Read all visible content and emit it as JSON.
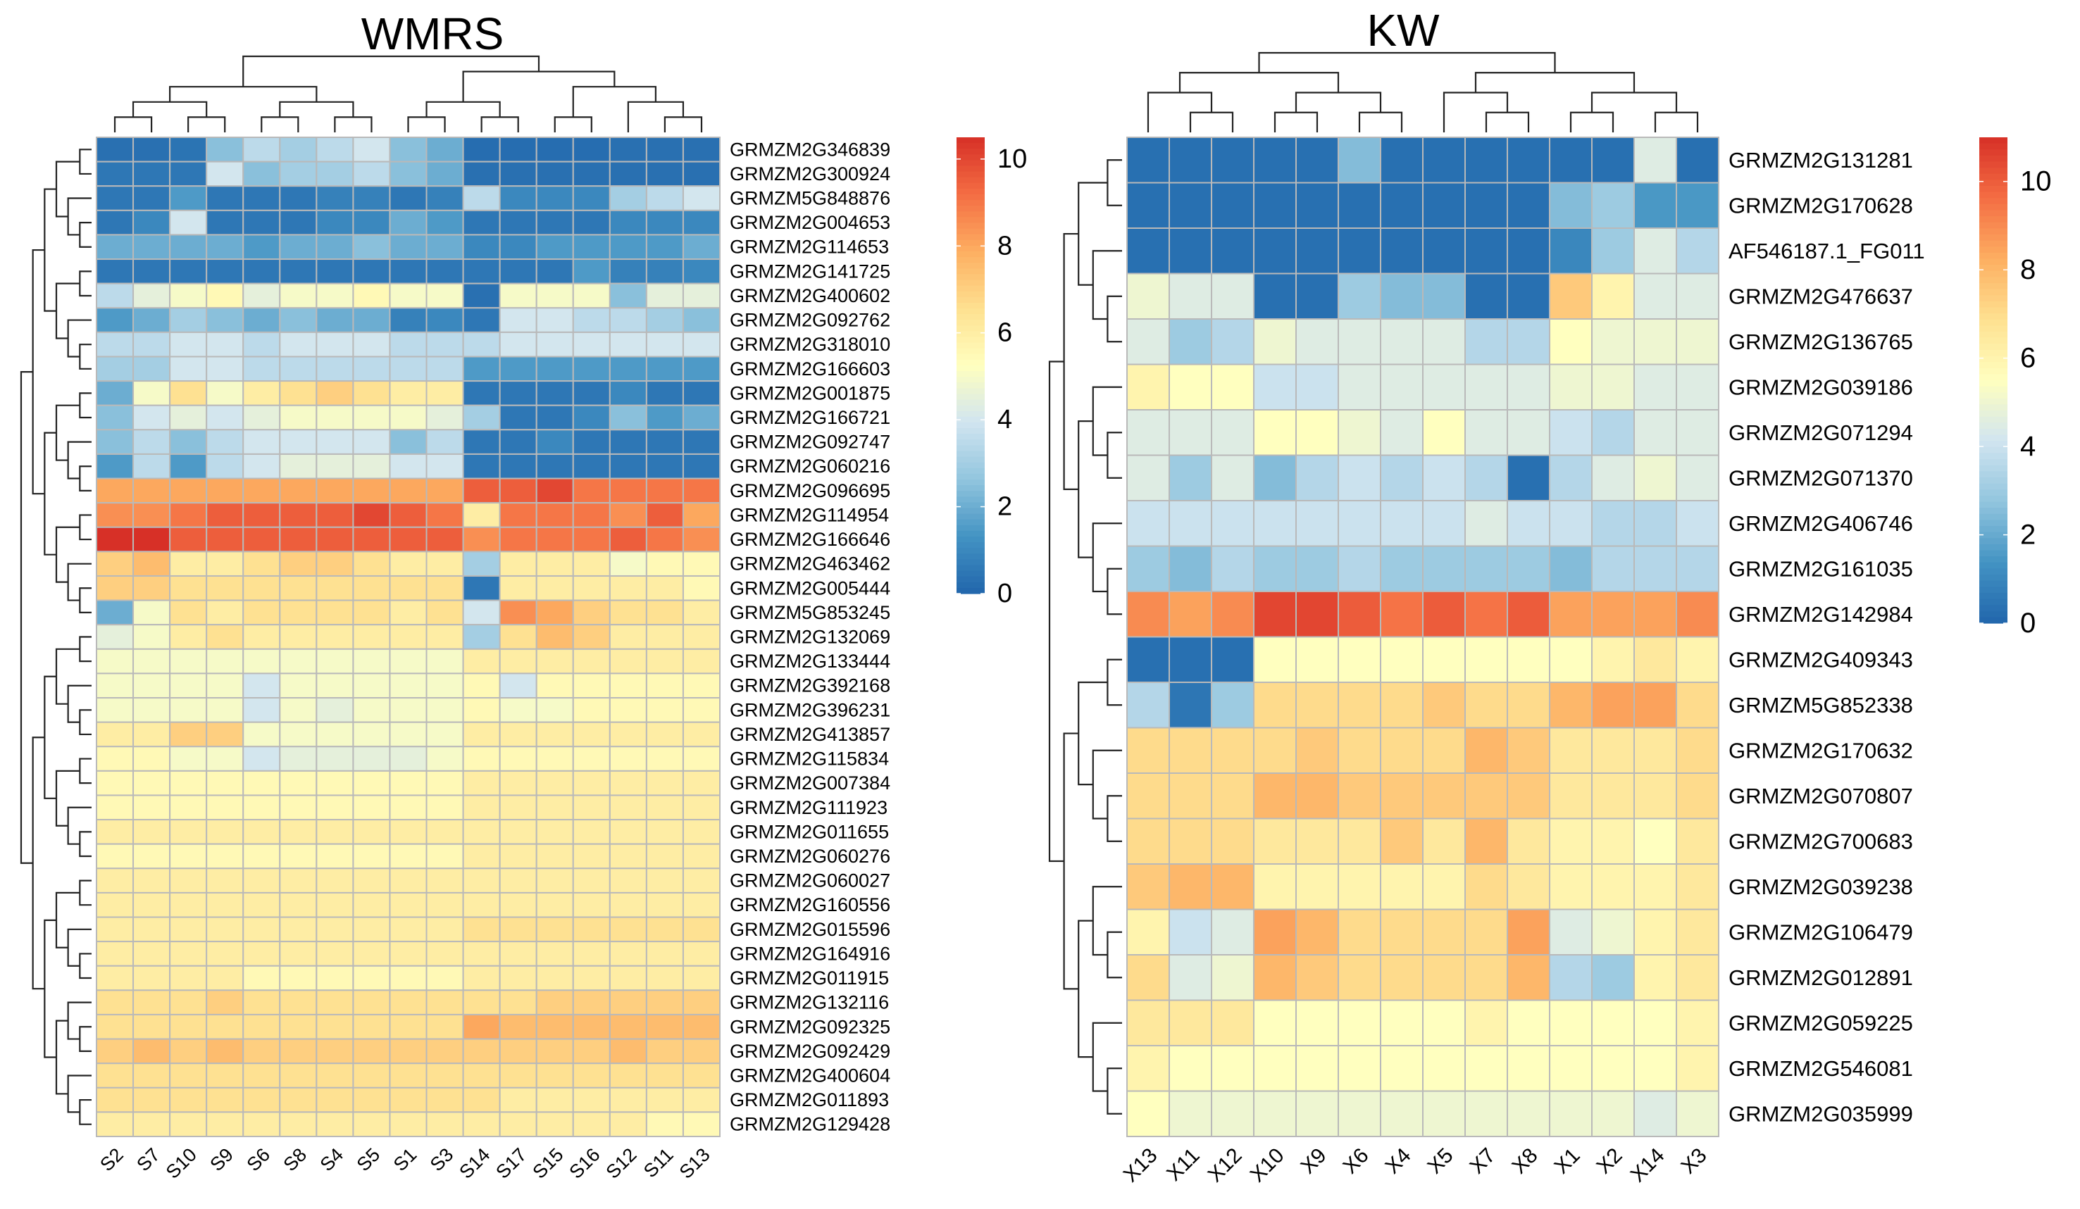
{
  "chart_data": [
    {
      "type": "heatmap",
      "title": "WMRS",
      "columns": [
        "S2",
        "S7",
        "S10",
        "S9",
        "S6",
        "S8",
        "S4",
        "S5",
        "S1",
        "S3",
        "S14",
        "S17",
        "S15",
        "S16",
        "S12",
        "S11",
        "S13"
      ],
      "rows": [
        "GRMZM2G346839",
        "GRMZM2G300924",
        "GRMZM5G848876",
        "GRMZM2G004653",
        "GRMZM2G114653",
        "GRMZM2G141725",
        "GRMZM2G400602",
        "GRMZM2G092762",
        "GRMZM2G318010",
        "GRMZM2G166603",
        "GRMZM2G001875",
        "GRMZM2G166721",
        "GRMZM2G092747",
        "GRMZM2G060216",
        "GRMZM2G096695",
        "GRMZM2G114954",
        "GRMZM2G166646",
        "GRMZM2G463462",
        "GRMZM2G005444",
        "GRMZM5G853245",
        "GRMZM2G132069",
        "GRMZM2G133444",
        "GRMZM2G392168",
        "GRMZM2G396231",
        "GRMZM2G413857",
        "GRMZM2G115834",
        "GRMZM2G007384",
        "GRMZM2G111923",
        "GRMZM2G011655",
        "GRMZM2G060276",
        "GRMZM2G060027",
        "GRMZM2G160556",
        "GRMZM2G015596",
        "GRMZM2G164916",
        "GRMZM2G011915",
        "GRMZM2G132116",
        "GRMZM2G092325",
        "GRMZM2G092429",
        "GRMZM2G400604",
        "GRMZM2G011893",
        "GRMZM2G129428"
      ],
      "values": [
        [
          0.3,
          0.3,
          0.4,
          2.5,
          3.5,
          3,
          3.5,
          4,
          2.5,
          2,
          0.2,
          0.2,
          0.2,
          0.2,
          0.3,
          0.3,
          0.3
        ],
        [
          0.5,
          0.5,
          0.5,
          4,
          2.5,
          3,
          3,
          3.5,
          2.5,
          2,
          0.3,
          0.3,
          0.3,
          0.3,
          0.3,
          0.3,
          0.3
        ],
        [
          0.5,
          0.5,
          1.5,
          0.5,
          0.5,
          0.5,
          0.8,
          0.8,
          0.5,
          0.8,
          3.5,
          1,
          1,
          1,
          3,
          3.5,
          4
        ],
        [
          0.5,
          1,
          4,
          0.5,
          0.5,
          0.5,
          1,
          1,
          2,
          1.5,
          0.5,
          0.5,
          0.5,
          0.5,
          1,
          1,
          1
        ],
        [
          2,
          2,
          2,
          2,
          1.5,
          2,
          2,
          2.5,
          2,
          2,
          1,
          1,
          1.5,
          1.5,
          1.5,
          1.5,
          2
        ],
        [
          0.5,
          0.5,
          0.5,
          0.5,
          0.5,
          0.5,
          0.5,
          0.5,
          0.5,
          0.5,
          0.5,
          0.5,
          0.5,
          1.5,
          0.8,
          0.8,
          1
        ],
        [
          3.5,
          4.5,
          5,
          5.5,
          4.5,
          5,
          5,
          5.5,
          5,
          5,
          0.3,
          5,
          5,
          5,
          2.5,
          4.5,
          4.5
        ],
        [
          1.5,
          2,
          3,
          2.5,
          2,
          2.5,
          2,
          2,
          0.8,
          1,
          0.5,
          4,
          4,
          3.5,
          3.5,
          3,
          2.5
        ],
        [
          3.5,
          3.5,
          4,
          4,
          3.5,
          4,
          4,
          4,
          3.5,
          3.5,
          3.5,
          4,
          4,
          4,
          4,
          4,
          4
        ],
        [
          3,
          3,
          4,
          4,
          3.5,
          3.5,
          3.5,
          3.5,
          3.5,
          3.5,
          1.5,
          1.5,
          1.5,
          1.5,
          1.5,
          1.5,
          1.5
        ],
        [
          2,
          5,
          6.5,
          5,
          6,
          6.5,
          7,
          6.5,
          6,
          6,
          0.5,
          0.5,
          0.5,
          0.5,
          1,
          0.5,
          0.5
        ],
        [
          2.5,
          4,
          4.5,
          4,
          4.5,
          5,
          5,
          5,
          5,
          4.5,
          3,
          0.5,
          0.5,
          1,
          2.5,
          1.5,
          2
        ],
        [
          2.5,
          3.5,
          2.5,
          3.5,
          4,
          4,
          4,
          4,
          2.5,
          3.5,
          0.5,
          0.5,
          1,
          0.5,
          0.5,
          0.5,
          0.5
        ],
        [
          1.5,
          3.5,
          1.5,
          3.5,
          4,
          4.5,
          4.5,
          4.5,
          4,
          4,
          0.5,
          0.5,
          0.5,
          0.5,
          0.5,
          0.5,
          0.5
        ],
        [
          8,
          8,
          8,
          8,
          8,
          8,
          8,
          8,
          8,
          8,
          9.5,
          9.5,
          10,
          9,
          9,
          9,
          9
        ],
        [
          8.5,
          8.5,
          9,
          9.5,
          9.5,
          9.5,
          9.5,
          10,
          9.5,
          9,
          6,
          9,
          9,
          9,
          8.5,
          9.5,
          8
        ],
        [
          10.5,
          10.5,
          9.5,
          9.5,
          9.5,
          9.5,
          9.5,
          9.5,
          9.5,
          9.5,
          8.5,
          9,
          9,
          9,
          9.5,
          9,
          8.5
        ],
        [
          7,
          7.5,
          6,
          6,
          6.5,
          7,
          7,
          6.5,
          6,
          6,
          3,
          6,
          6,
          6,
          5,
          5.5,
          5.5
        ],
        [
          7,
          7,
          6.5,
          6.5,
          6.5,
          6.5,
          6.5,
          6.5,
          6.5,
          6.5,
          0.5,
          6,
          6,
          6,
          6,
          6,
          5.5
        ],
        [
          2,
          5,
          6.5,
          6,
          6.5,
          6.5,
          6.5,
          6.5,
          6,
          6.5,
          4,
          8.5,
          8,
          7,
          6.5,
          6.5,
          6
        ],
        [
          4.5,
          5,
          6,
          6.5,
          6,
          6,
          6,
          6,
          6,
          6,
          3,
          6.5,
          7.5,
          7,
          6,
          6,
          6
        ],
        [
          5,
          5,
          5,
          5,
          5,
          5,
          5,
          5,
          5,
          5,
          6,
          6,
          6,
          6,
          6,
          6,
          6
        ],
        [
          5,
          5,
          5,
          5,
          4,
          5,
          5,
          5,
          5,
          5,
          5.5,
          4,
          5.5,
          5.5,
          5.5,
          5.5,
          5.5
        ],
        [
          5,
          5,
          5,
          5,
          4,
          5,
          4.5,
          5,
          5,
          5,
          5.5,
          5,
          5,
          5.5,
          5.5,
          5.5,
          5.5
        ],
        [
          6,
          6,
          7,
          7,
          5,
          5,
          5,
          5,
          5,
          5,
          6,
          6,
          6,
          6,
          6,
          6,
          6
        ],
        [
          5.5,
          5.5,
          5,
          5,
          4,
          4.5,
          4.5,
          4.5,
          4.5,
          5,
          5.5,
          5.5,
          5.5,
          5.5,
          5.5,
          5.5,
          5.5
        ],
        [
          5.5,
          5.5,
          5.5,
          5.5,
          5.5,
          5.5,
          5.5,
          5.5,
          5.5,
          5.5,
          6,
          6,
          6,
          6,
          6,
          6,
          6
        ],
        [
          5.5,
          5.5,
          5.5,
          5.5,
          5.5,
          5.5,
          5.5,
          5.5,
          5.5,
          5.5,
          6,
          6,
          6,
          6,
          6,
          6,
          6
        ],
        [
          6,
          6,
          6,
          6,
          6,
          6,
          6,
          6,
          6,
          6,
          6,
          6,
          6,
          6,
          6,
          6,
          6
        ],
        [
          5.5,
          5.5,
          5.5,
          5.5,
          5.5,
          5.5,
          5.5,
          5.5,
          5.5,
          5.5,
          6,
          6,
          6,
          6,
          6,
          6,
          6
        ],
        [
          6,
          6,
          6,
          6,
          6,
          6,
          6,
          6,
          6,
          6,
          6,
          6,
          6,
          6,
          6,
          6,
          6
        ],
        [
          6,
          6,
          6,
          6,
          6,
          6,
          6,
          6,
          6,
          6,
          6,
          6,
          6,
          6,
          6,
          6,
          6
        ],
        [
          6,
          6,
          6,
          6,
          6,
          6,
          6,
          6,
          6,
          6,
          6.5,
          6.5,
          6.5,
          6.5,
          6.5,
          6.5,
          6.5
        ],
        [
          6,
          6,
          6,
          6,
          6,
          6,
          6,
          6,
          6,
          6,
          6,
          6,
          6,
          6,
          6,
          6,
          6
        ],
        [
          6,
          6,
          6,
          6,
          5.5,
          5.5,
          5.5,
          5.5,
          5.5,
          5.5,
          6,
          6,
          6,
          6,
          6,
          6,
          6
        ],
        [
          6.5,
          6.5,
          6.5,
          7,
          6.5,
          6.5,
          6.5,
          6.5,
          6.5,
          6.5,
          6.5,
          6.5,
          7,
          7,
          7,
          7,
          7
        ],
        [
          6.5,
          6.5,
          6.5,
          6.5,
          6.5,
          6.5,
          6.5,
          6.5,
          6.5,
          6.5,
          8,
          7.5,
          7.5,
          7.5,
          7.5,
          7.5,
          7.5
        ],
        [
          7,
          7.5,
          7,
          7.5,
          7,
          7,
          7,
          7,
          7,
          7,
          7,
          7,
          7,
          7,
          7.5,
          7,
          7
        ],
        [
          6.5,
          6.5,
          6.5,
          6.5,
          6.5,
          6.5,
          6.5,
          6.5,
          6.5,
          6.5,
          6.5,
          6.5,
          6.5,
          6.5,
          6.5,
          6.5,
          6.5
        ],
        [
          6.5,
          6.5,
          6.5,
          6.5,
          6.5,
          6.5,
          6.5,
          6.5,
          6.5,
          6.5,
          6.5,
          6,
          6,
          6,
          6,
          6,
          6
        ],
        [
          6,
          6,
          6,
          6,
          6,
          6,
          6,
          6,
          6,
          6,
          6,
          6,
          6,
          6,
          6,
          5.5,
          5.5
        ]
      ],
      "color_scale": {
        "min": 0,
        "max": 10.5,
        "ticks": [
          0,
          2,
          4,
          6,
          8,
          10
        ],
        "colors": [
          "#2166ac",
          "#4393c3",
          "#92c5de",
          "#d1e5f0",
          "#ffffbf",
          "#fee090",
          "#fdae61",
          "#f46d43",
          "#d73027"
        ]
      },
      "legend": "right"
    },
    {
      "type": "heatmap",
      "title": "KW",
      "columns": [
        "X13",
        "X11",
        "X12",
        "X10",
        "X9",
        "X6",
        "X4",
        "X5",
        "X7",
        "X8",
        "X1",
        "X2",
        "X14",
        "X3"
      ],
      "rows": [
        "GRMZM2G131281",
        "GRMZM2G170628",
        "AF546187.1_FG011",
        "GRMZM2G476637",
        "GRMZM2G136765",
        "GRMZM2G039186",
        "GRMZM2G071294",
        "GRMZM2G071370",
        "GRMZM2G406746",
        "GRMZM2G161035",
        "GRMZM2G142984",
        "GRMZM2G409343",
        "GRMZM5G852338",
        "GRMZM2G170632",
        "GRMZM2G070807",
        "GRMZM2G700683",
        "GRMZM2G039238",
        "GRMZM2G106479",
        "GRMZM2G012891",
        "GRMZM2G059225",
        "GRMZM2G546081",
        "GRMZM2G035999"
      ],
      "values": [
        [
          0.3,
          0.3,
          0.3,
          0.3,
          0.3,
          2.5,
          0.3,
          0.3,
          0.3,
          0.3,
          0.3,
          0.3,
          4.5,
          0.3
        ],
        [
          0.3,
          0.3,
          0.3,
          0.3,
          0.3,
          0.3,
          0.3,
          0.3,
          0.3,
          0.3,
          2.5,
          3,
          1.5,
          1.5
        ],
        [
          0.3,
          0.3,
          0.3,
          0.3,
          0.3,
          0.3,
          0.3,
          0.3,
          0.3,
          0.3,
          1,
          3,
          4.5,
          3.5
        ],
        [
          5,
          4.5,
          4.5,
          0.3,
          0.3,
          3,
          2.5,
          2.5,
          0.3,
          0.3,
          7.5,
          6,
          4.5,
          4.5
        ],
        [
          4.5,
          3,
          3.5,
          5,
          4.5,
          4.5,
          4.5,
          4.5,
          3.5,
          3.5,
          5.5,
          5,
          5,
          5
        ],
        [
          6,
          5.5,
          5.5,
          4,
          4,
          4.5,
          4.5,
          4.5,
          4.5,
          4.5,
          5,
          5,
          4.5,
          4.5
        ],
        [
          4.5,
          4.5,
          4.5,
          5.5,
          5.5,
          5,
          4.5,
          5.5,
          4.5,
          4.5,
          4,
          3.5,
          4.5,
          4.5
        ],
        [
          4.5,
          3,
          4.5,
          2.5,
          3.5,
          4,
          3.5,
          4,
          3.5,
          0.3,
          3.5,
          4.5,
          5,
          4.5
        ],
        [
          4,
          4,
          4,
          4,
          4,
          4,
          4,
          4,
          4.5,
          4,
          4,
          3.5,
          3.5,
          4
        ],
        [
          3,
          2.5,
          3.5,
          3,
          3,
          3.5,
          3,
          3,
          3,
          3,
          2.5,
          3.5,
          3.5,
          3.5
        ],
        [
          9,
          8.5,
          9,
          10.5,
          10.5,
          10,
          9.5,
          10,
          9.5,
          10,
          8.5,
          8.5,
          8.5,
          9
        ],
        [
          0.3,
          0.3,
          0.3,
          5.5,
          5.5,
          5.5,
          5.5,
          5.5,
          5.5,
          5.5,
          5.5,
          6,
          6.5,
          6
        ],
        [
          3.5,
          0.5,
          3,
          7,
          7,
          7,
          7,
          7.5,
          7,
          7,
          8,
          8.5,
          8.5,
          7
        ],
        [
          7,
          7,
          7,
          7,
          7.5,
          7,
          7,
          7,
          8,
          7.5,
          6.5,
          6.5,
          6.5,
          7
        ],
        [
          7,
          7,
          7,
          8,
          8,
          7.5,
          7.5,
          7.5,
          7.5,
          7.5,
          6.5,
          6.5,
          6.5,
          7
        ],
        [
          7,
          7,
          7,
          6.5,
          6.5,
          6.5,
          7.5,
          6.5,
          8,
          6.5,
          6,
          6,
          5.5,
          6.5
        ],
        [
          7.5,
          8,
          8,
          6,
          6,
          6,
          6,
          6,
          7,
          6.5,
          6,
          6,
          6,
          6.5
        ],
        [
          6,
          4,
          4.5,
          8.5,
          8,
          7,
          7,
          7,
          7,
          8.5,
          4.5,
          5,
          6,
          6.5
        ],
        [
          7,
          4.5,
          5,
          8,
          7.5,
          7,
          7,
          7,
          7,
          8,
          3.5,
          3,
          6,
          6.5
        ],
        [
          6.5,
          6.5,
          6.5,
          5.5,
          5.5,
          5.5,
          5.5,
          5.5,
          6,
          5.5,
          5.5,
          5.5,
          5.5,
          6
        ],
        [
          6,
          5.5,
          5.5,
          5.5,
          5.5,
          5.5,
          5.5,
          5.5,
          5.5,
          5.5,
          5.5,
          5.5,
          5.5,
          6
        ],
        [
          5.5,
          5,
          5,
          5,
          5,
          5,
          5,
          5,
          5,
          5,
          5,
          5,
          4.5,
          5
        ]
      ],
      "color_scale": {
        "min": 0,
        "max": 11,
        "ticks": [
          0,
          2,
          4,
          6,
          8,
          10
        ],
        "colors": [
          "#2166ac",
          "#4393c3",
          "#92c5de",
          "#d1e5f0",
          "#ffffbf",
          "#fee090",
          "#fdae61",
          "#f46d43",
          "#d73027"
        ]
      },
      "legend": "right"
    }
  ]
}
